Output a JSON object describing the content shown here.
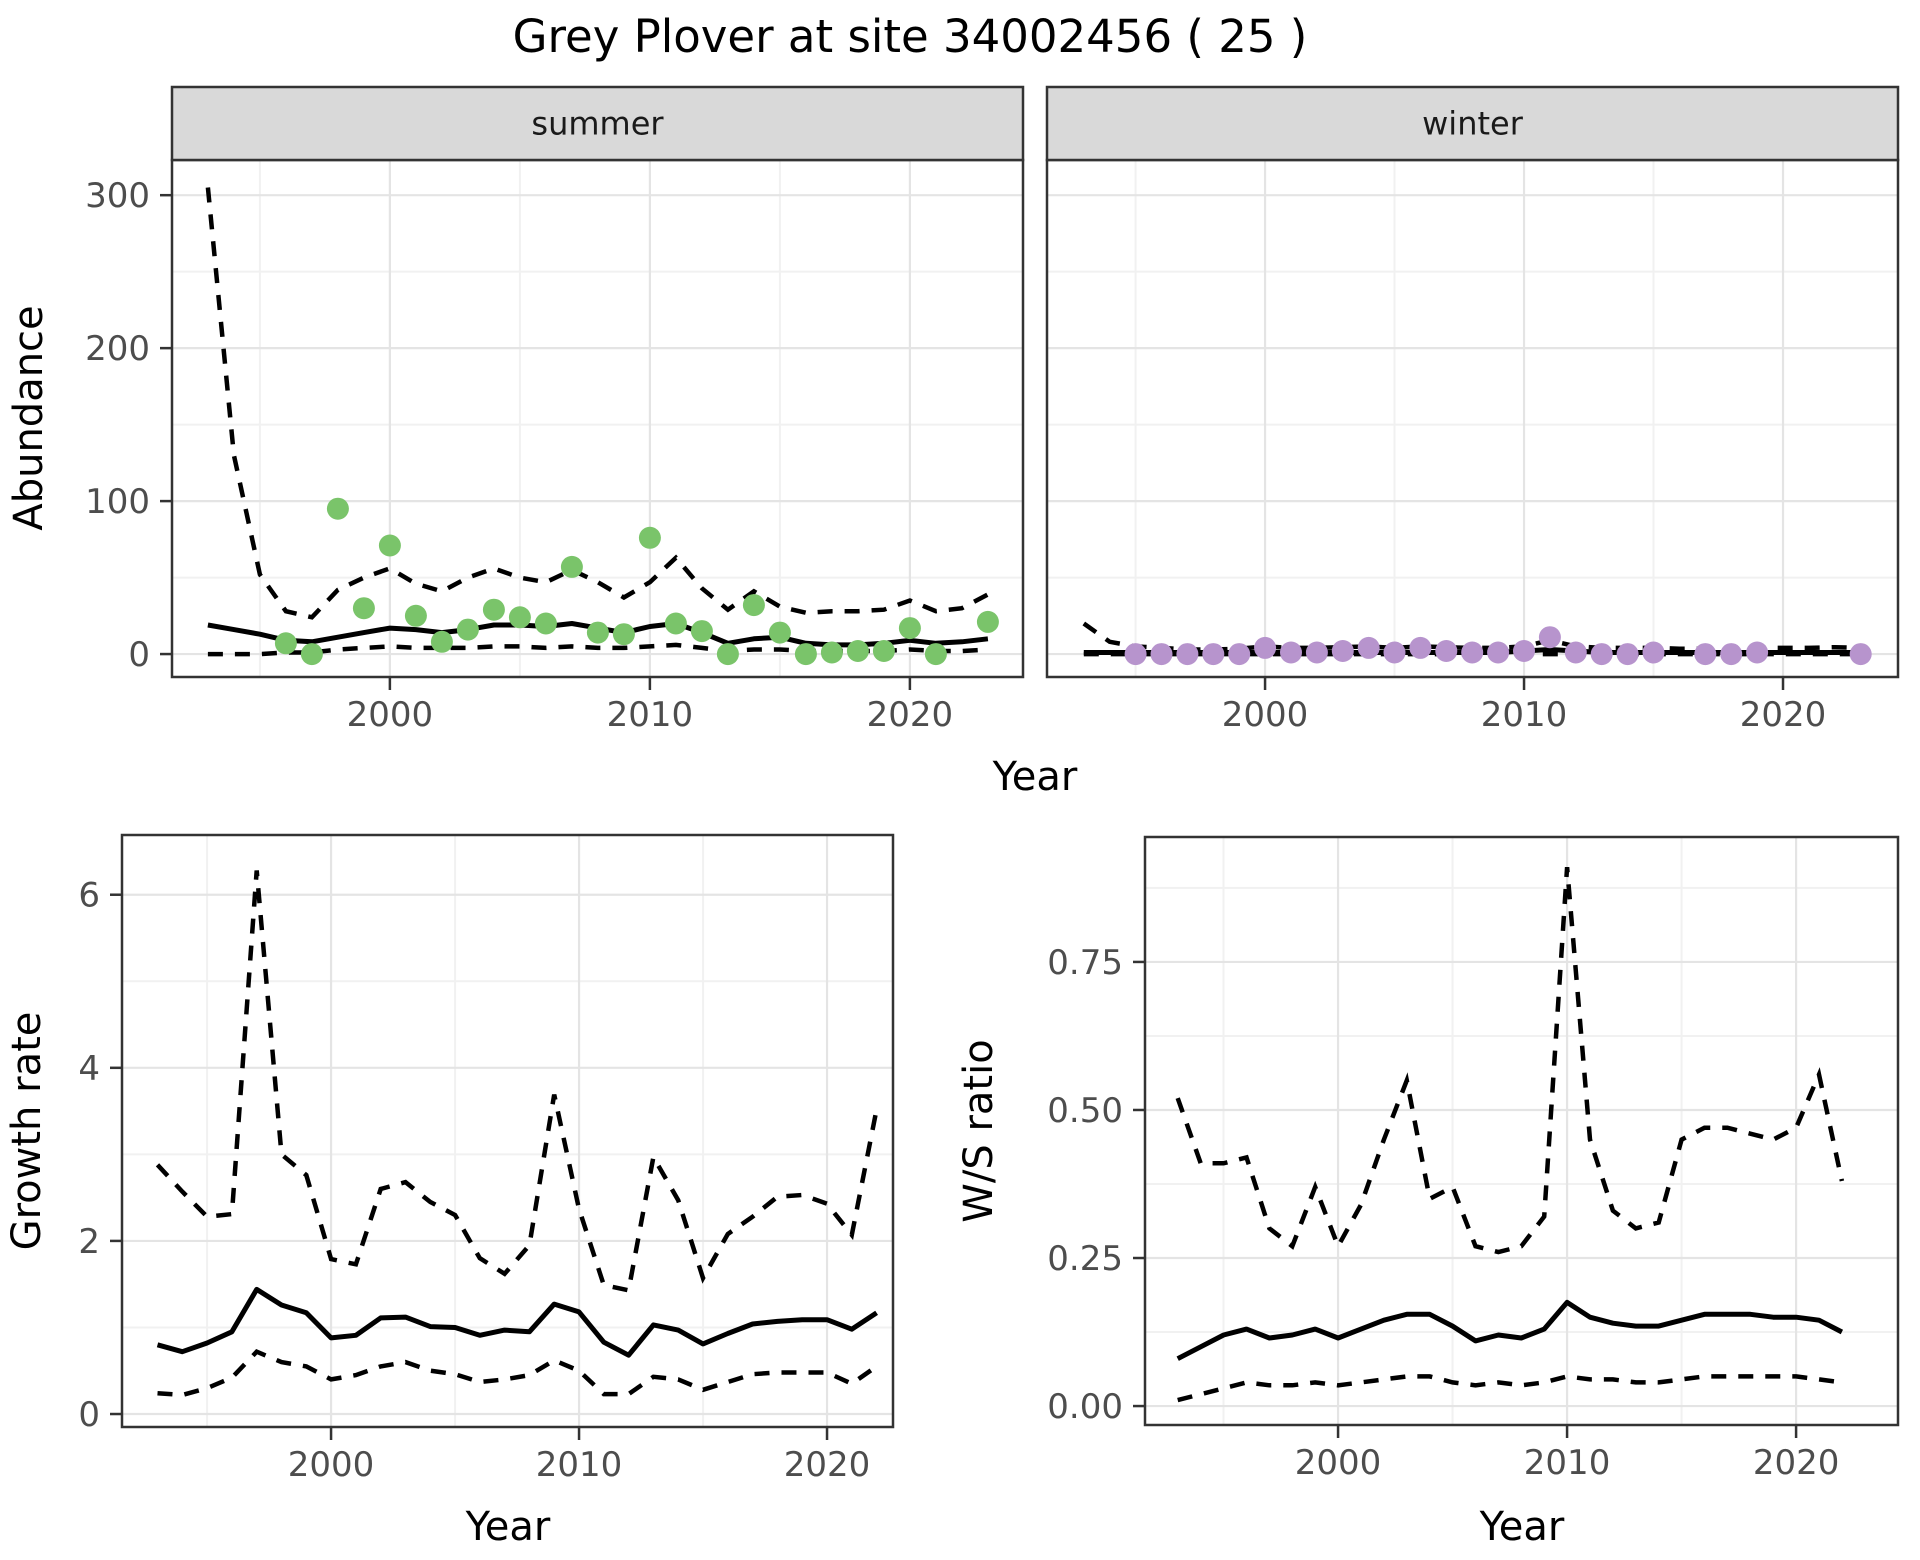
{
  "title": "Grey Plover at site 34002456 ( 25 )",
  "colors": {
    "summer_point": "#7ac46a",
    "winter_point": "#b794cd",
    "strip_bg": "#d9d9d9",
    "strip_border": "#333333",
    "panel_border": "#333333",
    "grid_major": "#e4e4e4",
    "grid_minor": "#f1f1f1",
    "tick_mark": "#333333",
    "tick_text": "#4d4d4d",
    "line": "#000000"
  },
  "chart_data": [
    {
      "id": "abundance",
      "type": "line+scatter",
      "xlabel": "Year",
      "ylabel": "Abundance",
      "x_ticks": [
        2000,
        2010,
        2020
      ],
      "x_minor": [
        1995,
        2005,
        2015,
        2025
      ],
      "y_ticks": [
        0,
        100,
        200,
        300
      ],
      "y_tick_labels": [
        "0",
        "100",
        "200",
        "300"
      ],
      "y_minor": [
        50,
        150,
        250
      ],
      "legend": "none",
      "grid": true,
      "panels": [
        {
          "facet_label": "summer",
          "xlim": [
            1991.62,
            2024.35
          ],
          "ylim": [
            -15,
            323
          ],
          "point_color_key": "summer_point",
          "years": [
            1993,
            1994,
            1995,
            1996,
            1997,
            1998,
            1999,
            2000,
            2001,
            2002,
            2003,
            2004,
            2005,
            2006,
            2007,
            2008,
            2009,
            2010,
            2011,
            2012,
            2013,
            2014,
            2015,
            2016,
            2017,
            2018,
            2019,
            2020,
            2021,
            2022,
            2023
          ],
          "mean": [
            19,
            16,
            13,
            9,
            8,
            11,
            14,
            17,
            16,
            14,
            16,
            19,
            19,
            18,
            20,
            17,
            14,
            18,
            20,
            14,
            7,
            10,
            11,
            7,
            6,
            6,
            7,
            9,
            7,
            8,
            10
          ],
          "upper_ci": [
            305,
            130,
            52,
            28,
            24,
            42,
            50,
            56,
            46,
            41,
            50,
            56,
            50,
            47,
            55,
            47,
            37,
            47,
            63,
            43,
            29,
            41,
            31,
            27,
            28,
            28,
            29,
            35,
            28,
            30,
            39
          ],
          "lower_ci": [
            0,
            0,
            0,
            1,
            1,
            3,
            4,
            5,
            4,
            4,
            4,
            5,
            5,
            4,
            5,
            4,
            4,
            5,
            6,
            4,
            2,
            3,
            3,
            2,
            2,
            2,
            2,
            3,
            2,
            2,
            3
          ],
          "points": {
            "years": [
              1996,
              1997,
              1998,
              1999,
              2000,
              2001,
              2002,
              2003,
              2004,
              2005,
              2006,
              2007,
              2008,
              2009,
              2010,
              2011,
              2012,
              2013,
              2014,
              2015,
              2016,
              2017,
              2018,
              2019,
              2020,
              2021,
              2023
            ],
            "values": [
              7,
              0,
              95,
              30,
              71,
              25,
              8,
              16,
              29,
              24,
              20,
              57,
              14,
              13,
              76,
              20,
              15,
              0,
              32,
              14,
              0,
              1,
              2,
              2,
              17,
              0,
              21
            ]
          }
        },
        {
          "facet_label": "winter",
          "xlim": [
            1991.58,
            2024.44
          ],
          "ylim": [
            -15,
            323
          ],
          "point_color_key": "winter_point",
          "years": [
            1993,
            1994,
            1995,
            1996,
            1997,
            1998,
            1999,
            2000,
            2001,
            2002,
            2003,
            2004,
            2005,
            2006,
            2007,
            2008,
            2009,
            2010,
            2011,
            2012,
            2013,
            2014,
            2015,
            2016,
            2017,
            2018,
            2019,
            2020,
            2021,
            2022,
            2023
          ],
          "mean": [
            1,
            1,
            1,
            1,
            1,
            1,
            1,
            1,
            1,
            1,
            1,
            1,
            1,
            1,
            1,
            1,
            1,
            2,
            3,
            2,
            1,
            1,
            1,
            1,
            1,
            1,
            1,
            1,
            1,
            1,
            1
          ],
          "upper_ci": [
            20,
            8,
            5,
            4,
            3,
            3,
            3.5,
            5,
            4,
            4,
            4.5,
            5,
            4,
            5,
            4.5,
            4,
            4,
            5,
            9,
            5,
            4,
            4,
            4,
            3.5,
            3.5,
            3.5,
            4,
            4,
            4,
            4.5,
            4
          ],
          "lower_ci": [
            0,
            0,
            0,
            0,
            0,
            0,
            0,
            0,
            0,
            0,
            0,
            0,
            0,
            0,
            0,
            0,
            0,
            0,
            0,
            0,
            0,
            0,
            0,
            0,
            0,
            0,
            0,
            0,
            0,
            0,
            0
          ],
          "points": {
            "years": [
              1995,
              1996,
              1997,
              1998,
              1999,
              2000,
              2001,
              2002,
              2003,
              2004,
              2005,
              2006,
              2007,
              2008,
              2009,
              2010,
              2011,
              2012,
              2013,
              2014,
              2015,
              2017,
              2018,
              2019,
              2023
            ],
            "values": [
              0,
              0,
              0,
              0,
              0,
              4,
              1,
              1,
              2,
              4,
              1,
              4,
              2,
              1,
              1,
              2,
              11,
              1,
              0,
              0,
              1,
              0,
              0,
              1,
              0
            ]
          }
        }
      ]
    },
    {
      "id": "growth_rate",
      "type": "line",
      "xlabel": "Year",
      "ylabel": "Growth rate",
      "x_ticks": [
        2000,
        2010,
        2020
      ],
      "x_minor": [
        1995,
        2005,
        2015,
        2025
      ],
      "y_ticks": [
        0,
        2,
        4,
        6
      ],
      "y_tick_labels": [
        "0",
        "2",
        "4",
        "6"
      ],
      "y_minor": [
        1,
        3,
        5
      ],
      "legend": "none",
      "grid": true,
      "panels": [
        {
          "facet_label": null,
          "xlim": [
            1991.57,
            2022.66
          ],
          "ylim": [
            -0.15,
            6.69
          ],
          "years": [
            1993,
            1994,
            1995,
            1996,
            1997,
            1998,
            1999,
            2000,
            2001,
            2002,
            2003,
            2004,
            2005,
            2006,
            2007,
            2008,
            2009,
            2010,
            2011,
            2012,
            2013,
            2014,
            2015,
            2016,
            2017,
            2018,
            2019,
            2020,
            2021,
            2022
          ],
          "mean": [
            0.8,
            0.72,
            0.82,
            0.95,
            1.44,
            1.26,
            1.17,
            0.88,
            0.91,
            1.11,
            1.12,
            1.01,
            1.0,
            0.91,
            0.97,
            0.95,
            1.27,
            1.18,
            0.83,
            0.68,
            1.03,
            0.97,
            0.81,
            0.93,
            1.04,
            1.07,
            1.09,
            1.09,
            0.98,
            1.17
          ],
          "upper_ci": [
            2.88,
            2.57,
            2.28,
            2.31,
            6.28,
            3.0,
            2.76,
            1.79,
            1.73,
            2.6,
            2.68,
            2.45,
            2.3,
            1.8,
            1.62,
            1.95,
            3.69,
            2.37,
            1.49,
            1.43,
            2.97,
            2.47,
            1.57,
            2.08,
            2.28,
            2.51,
            2.53,
            2.43,
            2.07,
            3.52
          ],
          "lower_ci": [
            0.24,
            0.22,
            0.3,
            0.42,
            0.72,
            0.6,
            0.55,
            0.4,
            0.45,
            0.55,
            0.6,
            0.5,
            0.46,
            0.37,
            0.4,
            0.45,
            0.62,
            0.5,
            0.23,
            0.23,
            0.43,
            0.4,
            0.28,
            0.37,
            0.46,
            0.48,
            0.48,
            0.48,
            0.35,
            0.55
          ]
        }
      ]
    },
    {
      "id": "ws_ratio",
      "type": "line",
      "xlabel": "Year",
      "ylabel": "W/S ratio",
      "x_ticks": [
        2000,
        2010,
        2020
      ],
      "x_minor": [
        1995,
        2005,
        2015,
        2025
      ],
      "y_ticks": [
        0,
        0.25,
        0.5,
        0.75
      ],
      "y_tick_labels": [
        "0.00",
        "0.25",
        "0.50",
        "0.75"
      ],
      "y_minor": [
        0.125,
        0.375,
        0.625,
        0.875
      ],
      "legend": "none",
      "grid": true,
      "panels": [
        {
          "facet_label": null,
          "xlim": [
            1991.57,
            2024.45
          ],
          "ylim": [
            -0.032,
            0.961
          ],
          "years": [
            1993,
            1994,
            1995,
            1996,
            1997,
            1998,
            1999,
            2000,
            2001,
            2002,
            2003,
            2004,
            2005,
            2006,
            2007,
            2008,
            2009,
            2010,
            2011,
            2012,
            2013,
            2014,
            2015,
            2016,
            2017,
            2018,
            2019,
            2020,
            2021,
            2022
          ],
          "mean": [
            0.08,
            0.1,
            0.12,
            0.13,
            0.115,
            0.12,
            0.13,
            0.115,
            0.13,
            0.145,
            0.155,
            0.155,
            0.135,
            0.11,
            0.12,
            0.115,
            0.13,
            0.175,
            0.15,
            0.14,
            0.135,
            0.135,
            0.145,
            0.155,
            0.155,
            0.155,
            0.15,
            0.15,
            0.145,
            0.125
          ],
          "upper_ci": [
            0.52,
            0.41,
            0.41,
            0.42,
            0.3,
            0.27,
            0.37,
            0.27,
            0.34,
            0.45,
            0.55,
            0.35,
            0.37,
            0.27,
            0.26,
            0.27,
            0.32,
            0.91,
            0.45,
            0.33,
            0.3,
            0.31,
            0.45,
            0.47,
            0.47,
            0.46,
            0.45,
            0.47,
            0.56,
            0.38
          ],
          "lower_ci": [
            0.01,
            0.02,
            0.03,
            0.04,
            0.035,
            0.035,
            0.04,
            0.035,
            0.04,
            0.045,
            0.05,
            0.05,
            0.04,
            0.035,
            0.04,
            0.035,
            0.04,
            0.05,
            0.045,
            0.045,
            0.04,
            0.04,
            0.045,
            0.05,
            0.05,
            0.05,
            0.05,
            0.05,
            0.045,
            0.04
          ]
        }
      ]
    }
  ]
}
